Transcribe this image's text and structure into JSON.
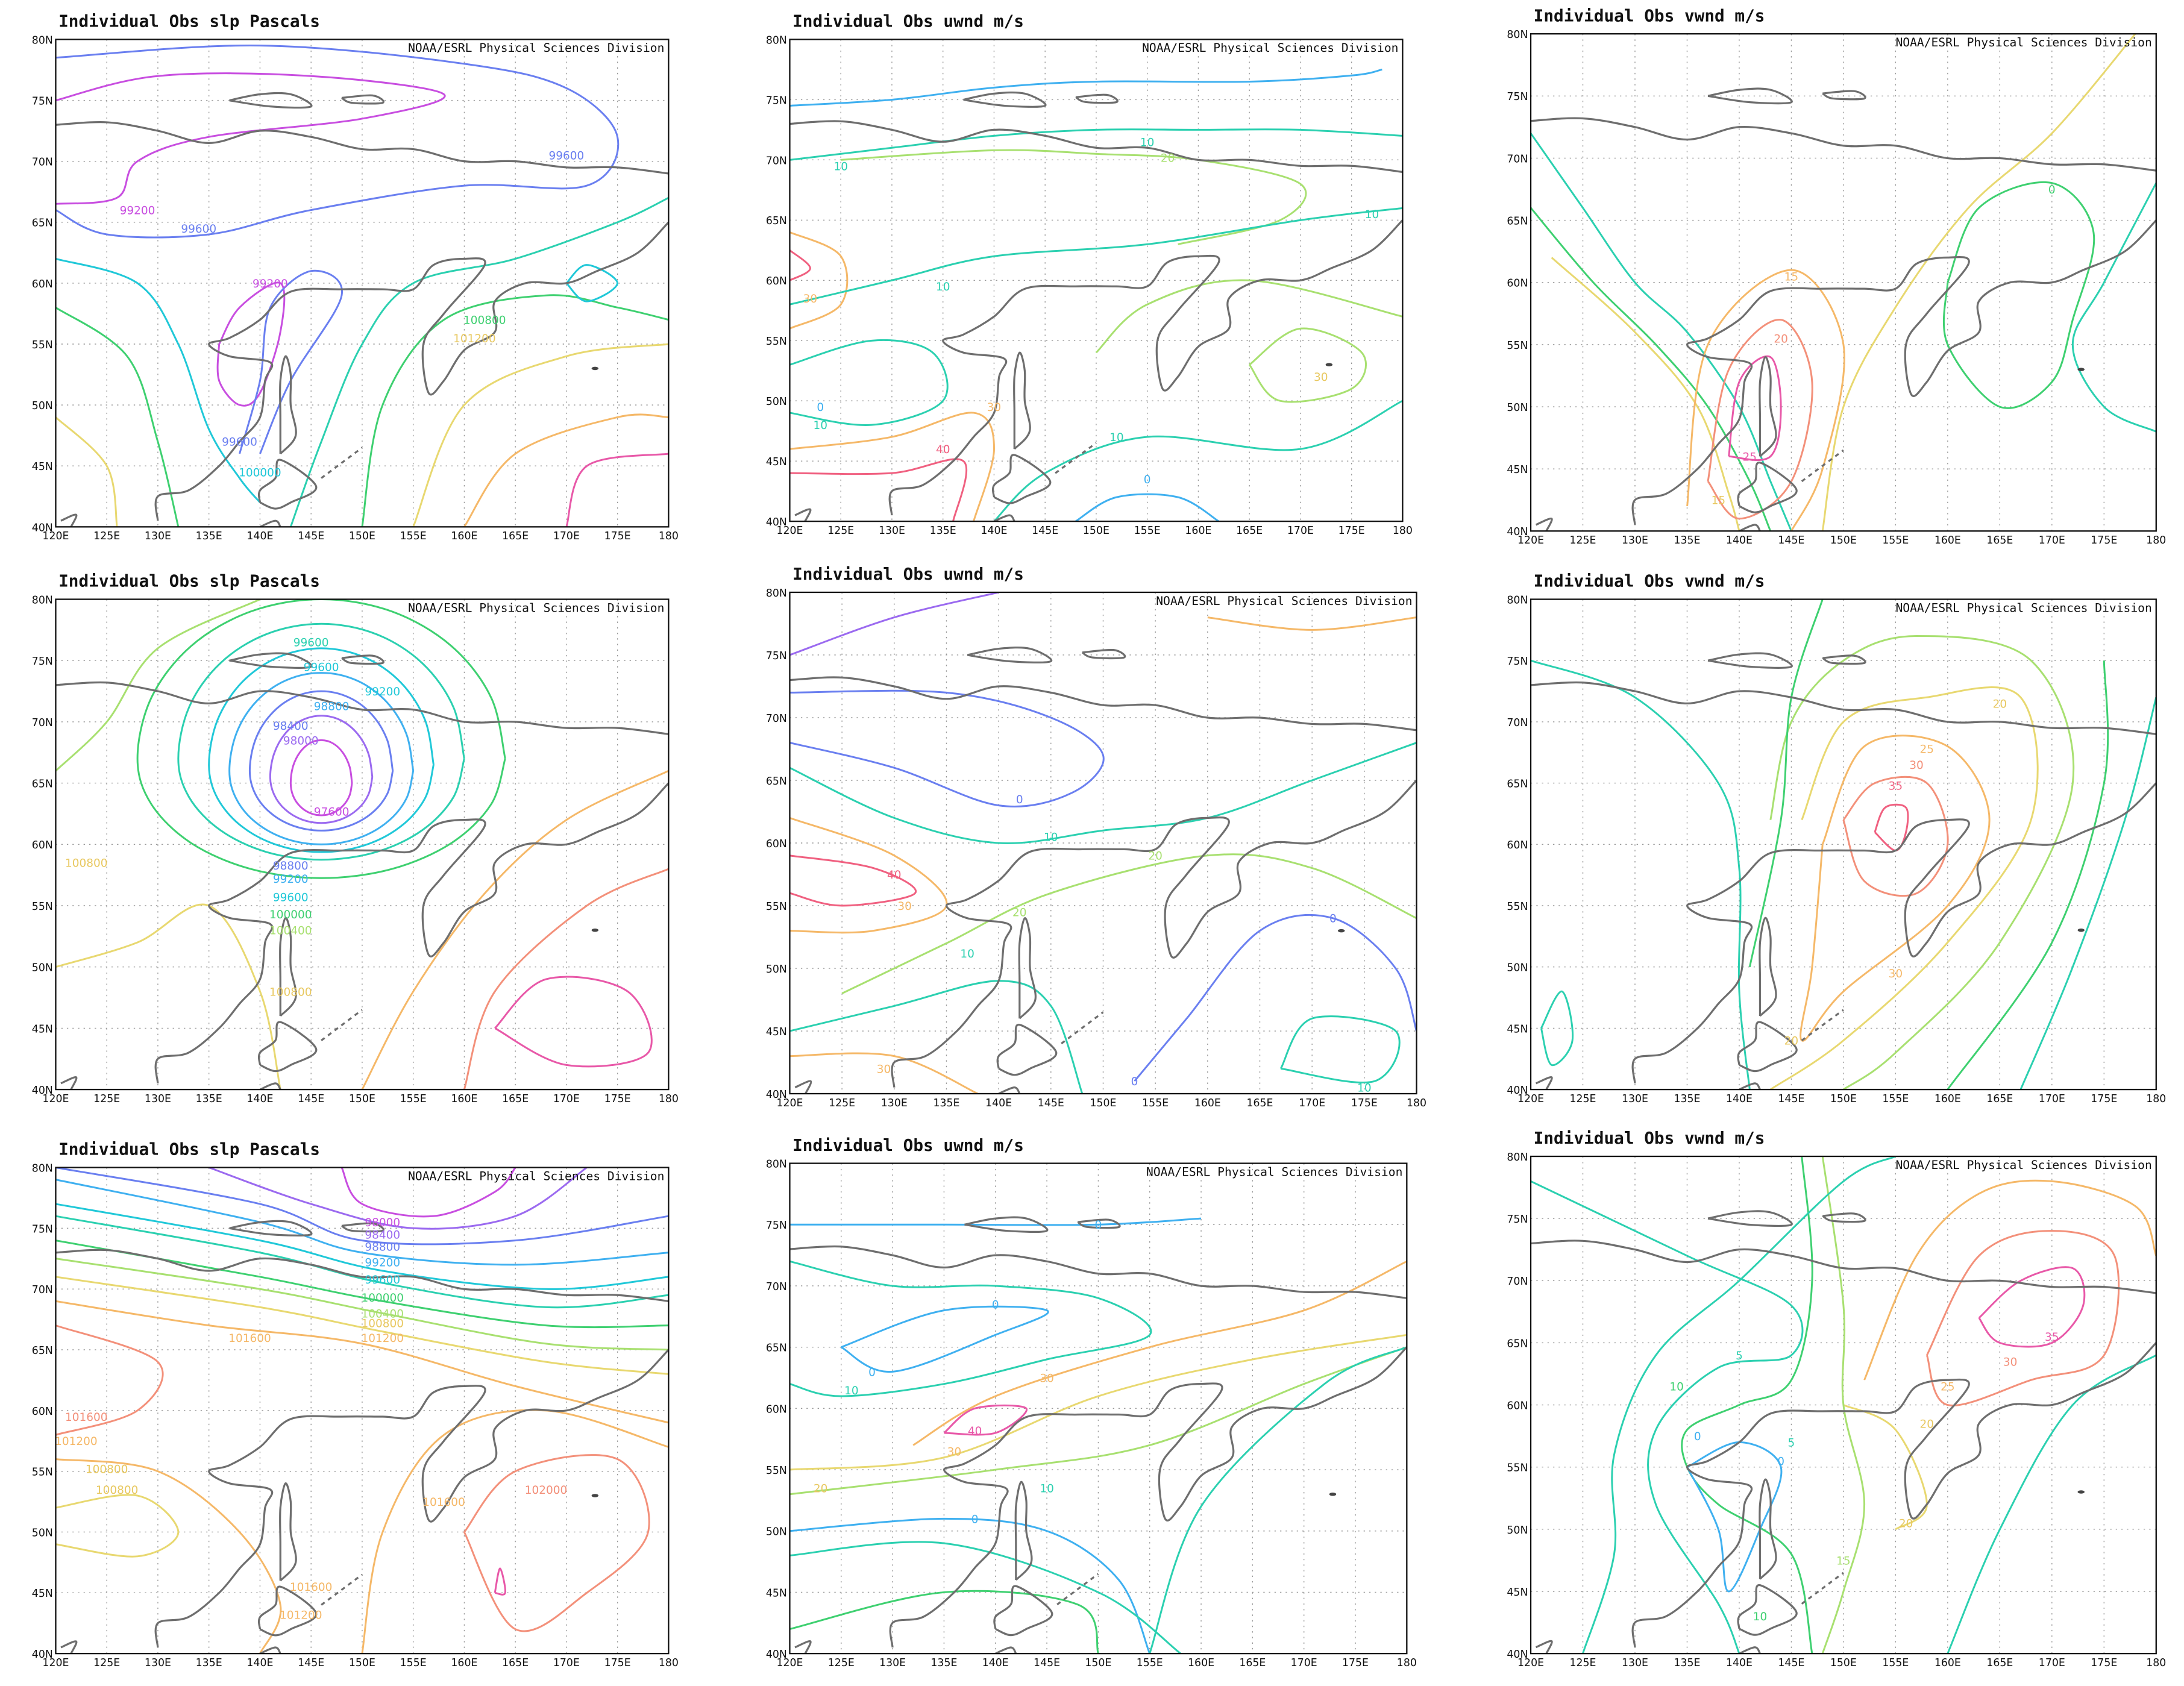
{
  "axes": {
    "xlim": [
      120,
      180
    ],
    "ylim": [
      40,
      80
    ],
    "xticks": [
      {
        "value": 120,
        "label": "120E"
      },
      {
        "value": 125,
        "label": "125E"
      },
      {
        "value": 130,
        "label": "130E"
      },
      {
        "value": 135,
        "label": "135E"
      },
      {
        "value": 140,
        "label": "140E"
      },
      {
        "value": 145,
        "label": "145E"
      },
      {
        "value": 150,
        "label": "150E"
      },
      {
        "value": 155,
        "label": "155E"
      },
      {
        "value": 160,
        "label": "160E"
      },
      {
        "value": 165,
        "label": "165E"
      },
      {
        "value": 170,
        "label": "170E"
      },
      {
        "value": 175,
        "label": "175E"
      },
      {
        "value": 180,
        "label": "180"
      }
    ],
    "yticks": [
      {
        "value": 40,
        "label": "40N"
      },
      {
        "value": 45,
        "label": "45N"
      },
      {
        "value": 50,
        "label": "50N"
      },
      {
        "value": 55,
        "label": "55N"
      },
      {
        "value": 60,
        "label": "60N"
      },
      {
        "value": 65,
        "label": "65N"
      },
      {
        "value": 70,
        "label": "70N"
      },
      {
        "value": 75,
        "label": "75N"
      },
      {
        "value": 80,
        "label": "80N"
      }
    ]
  },
  "panels": [
    {
      "title": "Individual Obs slp Pascals",
      "credit": "NOAA/ESRL Physical Sciences Division",
      "contour_labels": [
        {
          "text": "99600",
          "color": "#6a7ff0"
        },
        {
          "text": "99200",
          "color": "#c84ee0"
        },
        {
          "text": "99600",
          "color": "#6a7ff0"
        },
        {
          "text": "99200",
          "color": "#c84ee0"
        },
        {
          "text": "100800",
          "color": "#3ed070"
        },
        {
          "text": "101200",
          "color": "#e8c860"
        },
        {
          "text": "99600",
          "color": "#6a7ff0"
        },
        {
          "text": "100000",
          "color": "#20c8d8"
        }
      ]
    },
    {
      "title": "Individual Obs uwnd m/s",
      "credit": "NOAA/ESRL Physical Sciences Division",
      "contour_labels": [
        {
          "text": "10",
          "color": "#2bd0b0"
        },
        {
          "text": "20",
          "color": "#a8e070"
        },
        {
          "text": "10",
          "color": "#2bd0b0"
        },
        {
          "text": "10",
          "color": "#2bd0b0"
        },
        {
          "text": "30",
          "color": "#f5b868"
        },
        {
          "text": "10",
          "color": "#2bd0b0"
        },
        {
          "text": "30",
          "color": "#e8c860"
        },
        {
          "text": "0",
          "color": "#3fb0f0"
        },
        {
          "text": "10",
          "color": "#2bd0b0"
        },
        {
          "text": "30",
          "color": "#f5b868"
        },
        {
          "text": "40",
          "color": "#f06080"
        },
        {
          "text": "10",
          "color": "#2bd0b0"
        },
        {
          "text": "0",
          "color": "#3fb0f0"
        }
      ]
    },
    {
      "title": "Individual Obs vwnd m/s",
      "credit": "NOAA/ESRL Physical Sciences Division",
      "contour_labels": [
        {
          "text": "0",
          "color": "#3ed070"
        },
        {
          "text": "15",
          "color": "#f5b868"
        },
        {
          "text": "20",
          "color": "#f3907a"
        },
        {
          "text": "25",
          "color": "#e858a8"
        },
        {
          "text": "15",
          "color": "#e8c860"
        }
      ]
    },
    {
      "title": "Individual Obs slp Pascals",
      "credit": "NOAA/ESRL Physical Sciences Division",
      "contour_labels": [
        {
          "text": "99600",
          "color": "#2bd0b0"
        },
        {
          "text": "99600",
          "color": "#20c8d8"
        },
        {
          "text": "99200",
          "color": "#20c8d8"
        },
        {
          "text": "98800",
          "color": "#3fb0f0"
        },
        {
          "text": "98400",
          "color": "#6a7ff0"
        },
        {
          "text": "98000",
          "color": "#9b6af0"
        },
        {
          "text": "97600",
          "color": "#c84ee0"
        },
        {
          "text": "98800",
          "color": "#6a7ff0"
        },
        {
          "text": "99200",
          "color": "#3fb0f0"
        },
        {
          "text": "99600",
          "color": "#20c8d8"
        },
        {
          "text": "100000",
          "color": "#3ed070"
        },
        {
          "text": "100400",
          "color": "#a8e070"
        },
        {
          "text": "100800",
          "color": "#e8c860"
        },
        {
          "text": "100800",
          "color": "#e8c860"
        }
      ]
    },
    {
      "title": "Individual Obs uwnd m/s",
      "credit": "NOAA/ESRL Physical Sciences Division",
      "contour_labels": [
        {
          "text": "0",
          "color": "#6a7ff0"
        },
        {
          "text": "10",
          "color": "#2bd0b0"
        },
        {
          "text": "20",
          "color": "#a8e070"
        },
        {
          "text": "40",
          "color": "#f06080"
        },
        {
          "text": "30",
          "color": "#f5b868"
        },
        {
          "text": "20",
          "color": "#a8e070"
        },
        {
          "text": "10",
          "color": "#2bd0b0"
        },
        {
          "text": "0",
          "color": "#6a7ff0"
        },
        {
          "text": "0",
          "color": "#6a7ff0"
        },
        {
          "text": "30",
          "color": "#f5b868"
        },
        {
          "text": "10",
          "color": "#2bd0b0"
        }
      ]
    },
    {
      "title": "Individual Obs vwnd m/s",
      "credit": "NOAA/ESRL Physical Sciences Division",
      "contour_labels": [
        {
          "text": "20",
          "color": "#e8c860"
        },
        {
          "text": "25",
          "color": "#f5b868"
        },
        {
          "text": "30",
          "color": "#f3907a"
        },
        {
          "text": "35",
          "color": "#f06080"
        },
        {
          "text": "30",
          "color": "#f5b868"
        },
        {
          "text": "20",
          "color": "#e8c860"
        }
      ]
    },
    {
      "title": "Individual Obs slp Pascals",
      "credit": "NOAA/ESRL Physical Sciences Division",
      "contour_labels": [
        {
          "text": "98000",
          "color": "#c84ee0"
        },
        {
          "text": "98400",
          "color": "#9b6af0"
        },
        {
          "text": "98800",
          "color": "#6a7ff0"
        },
        {
          "text": "99200",
          "color": "#3fb0f0"
        },
        {
          "text": "99600",
          "color": "#20c8d8"
        },
        {
          "text": "100000",
          "color": "#3ed070"
        },
        {
          "text": "100400",
          "color": "#a8e070"
        },
        {
          "text": "100800",
          "color": "#e8c860"
        },
        {
          "text": "101200",
          "color": "#f5b868"
        },
        {
          "text": "101600",
          "color": "#f5b868"
        },
        {
          "text": "101600",
          "color": "#f3907a"
        },
        {
          "text": "101200",
          "color": "#f5b868"
        },
        {
          "text": "100800",
          "color": "#e8c860"
        },
        {
          "text": "100800",
          "color": "#e8c860"
        },
        {
          "text": "101600",
          "color": "#f5b868"
        },
        {
          "text": "102000",
          "color": "#f3907a"
        },
        {
          "text": "101600",
          "color": "#f5b868"
        },
        {
          "text": "101200",
          "color": "#f5b868"
        }
      ]
    },
    {
      "title": "Individual Obs uwnd m/s",
      "credit": "NOAA/ESRL Physical Sciences Division",
      "contour_labels": [
        {
          "text": "0",
          "color": "#3fb0f0"
        },
        {
          "text": "0",
          "color": "#3fb0f0"
        },
        {
          "text": "0",
          "color": "#3fb0f0"
        },
        {
          "text": "10",
          "color": "#2bd0b0"
        },
        {
          "text": "30",
          "color": "#f5b868"
        },
        {
          "text": "40",
          "color": "#e858a8"
        },
        {
          "text": "30",
          "color": "#f5b868"
        },
        {
          "text": "20",
          "color": "#e8c860"
        },
        {
          "text": "0",
          "color": "#3fb0f0"
        },
        {
          "text": "10",
          "color": "#2bd0b0"
        }
      ]
    },
    {
      "title": "Individual Obs vwnd m/s",
      "credit": "NOAA/ESRL Physical Sciences Division",
      "contour_labels": [
        {
          "text": "35",
          "color": "#e858a8"
        },
        {
          "text": "30",
          "color": "#f3907a"
        },
        {
          "text": "25",
          "color": "#f5b868"
        },
        {
          "text": "20",
          "color": "#e8c860"
        },
        {
          "text": "20",
          "color": "#e8c860"
        },
        {
          "text": "15",
          "color": "#a8e070"
        },
        {
          "text": "5",
          "color": "#2bd0b0"
        },
        {
          "text": "10",
          "color": "#3ed070"
        },
        {
          "text": "5",
          "color": "#2bd0b0"
        },
        {
          "text": "0",
          "color": "#3fb0f0"
        },
        {
          "text": "0",
          "color": "#3fb0f0"
        },
        {
          "text": "10",
          "color": "#3ed070"
        }
      ]
    }
  ]
}
